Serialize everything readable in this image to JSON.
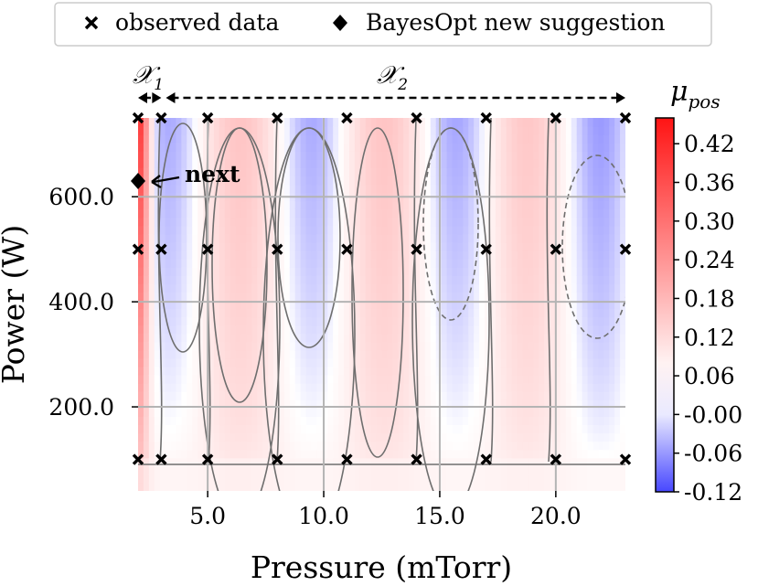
{
  "chart_data": {
    "type": "heatmap",
    "title": "",
    "xlabel": "Pressure (mTorr)",
    "ylabel": "Power (W)",
    "xlim": [
      2.0,
      23.0
    ],
    "ylim": [
      40,
      750
    ],
    "xticks": [
      5,
      10,
      15,
      20
    ],
    "xtick_labels": [
      "5.0",
      "10.0",
      "15.0",
      "20.0"
    ],
    "yticks": [
      200,
      400,
      600
    ],
    "ytick_labels": [
      "200.0",
      "400.0",
      "600.0"
    ],
    "grid": true,
    "legend": {
      "position": "top",
      "entries": [
        {
          "label": "observed data",
          "marker": "x"
        },
        {
          "label": "BayesOpt new suggestion",
          "marker": "diamond"
        }
      ]
    },
    "colorbar": {
      "label": "μ",
      "label_sub": "pos",
      "range": [
        -0.12,
        0.46
      ],
      "ticks": [
        0.42,
        0.36,
        0.3,
        0.24,
        0.18,
        0.12,
        0.06,
        -0.0,
        -0.06,
        -0.12
      ],
      "tick_labels": [
        "0.42",
        "0.36",
        "0.30",
        "0.24",
        "0.18",
        "0.12",
        "0.06",
        "-0.00",
        "-0.06",
        "-0.12"
      ],
      "colormap": "bwr"
    },
    "observed_data": {
      "pressures": [
        2,
        3,
        5,
        8,
        11,
        14,
        17,
        20,
        23
      ],
      "powers": [
        100,
        500,
        750
      ]
    },
    "new_suggestion": {
      "pressure": 2.0,
      "power": 630
    },
    "annotations": {
      "next_label": "next",
      "region1_label": "𝒳",
      "region1_sub": "1",
      "region1_range": [
        2.0,
        3.0
      ],
      "region2_label": "𝒳",
      "region2_sub": "2",
      "region2_range": [
        3.0,
        23.0
      ]
    }
  }
}
